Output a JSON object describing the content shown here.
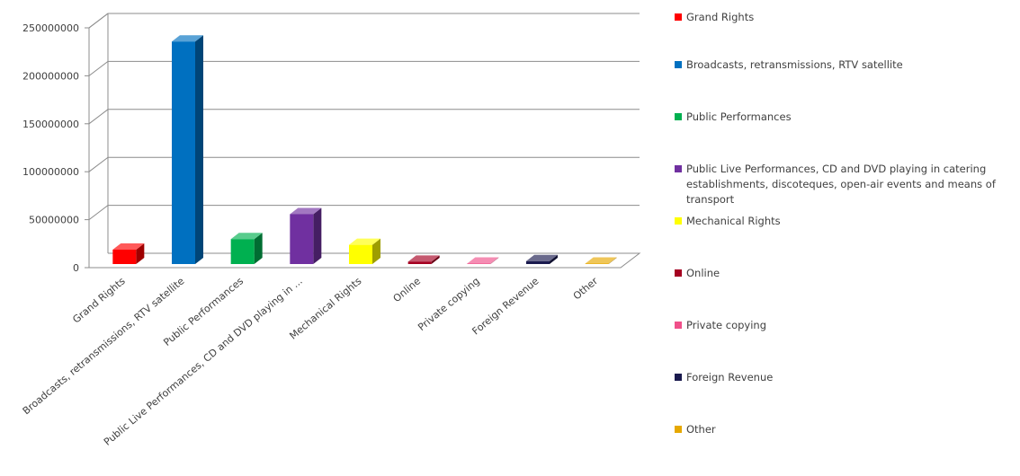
{
  "chart_data": {
    "type": "bar",
    "title": "",
    "xlabel": "",
    "ylabel": "",
    "ylim": [
      0,
      250000000
    ],
    "ytick_labels": [
      "0",
      "50000000",
      "100000000",
      "150000000",
      "200000000",
      "250000000"
    ],
    "grid": true,
    "legend_position": "right",
    "categories": [
      {
        "label": "Grand Rights",
        "axis_label": "Grand Rights",
        "legend_lines": [
          "Grand Rights"
        ],
        "color": "#ff0000",
        "value": 15000000
      },
      {
        "label": "Broadcasts, retransmissions, RTV satellite",
        "axis_label": "Broadcasts, retransmissions, RTV satellite",
        "legend_lines": [
          "Broadcasts, retransmissions, RTV satellite"
        ],
        "color": "#0070c0",
        "value": 232000000
      },
      {
        "label": "Public Performances",
        "axis_label": "Public Performances",
        "legend_lines": [
          "Public Performances"
        ],
        "color": "#00b050",
        "value": 26000000
      },
      {
        "label": "Public Live Performances, CD and DVD playing in catering establishments, discoteques, open-air events and means of transport",
        "axis_label": "Public Live Performances, CD and DVD playing in ...",
        "legend_lines": [
          "Public Live Performances, CD and DVD playing in catering",
          "establishments, discoteques, open-air events and means of",
          "transport"
        ],
        "color": "#7030a0",
        "value": 52000000
      },
      {
        "label": "Mechanical Rights",
        "axis_label": "Mechanical Rights",
        "legend_lines": [
          "Mechanical Rights"
        ],
        "color": "#ffff00",
        "value": 20000000
      },
      {
        "label": "Online",
        "axis_label": "Online",
        "legend_lines": [
          "Online"
        ],
        "color": "#a50021",
        "value": 2500000
      },
      {
        "label": "Private copying",
        "axis_label": "Private copying",
        "legend_lines": [
          "Private copying"
        ],
        "color": "#f0508a",
        "value": 500000
      },
      {
        "label": "Foreign Revenue",
        "axis_label": "Foreign Revenue",
        "legend_lines": [
          "Foreign Revenue"
        ],
        "color": "#1a1a4e",
        "value": 3000000
      },
      {
        "label": "Other",
        "axis_label": "Other",
        "legend_lines": [
          "Other"
        ],
        "color": "#e6a800",
        "value": 500000
      }
    ]
  }
}
